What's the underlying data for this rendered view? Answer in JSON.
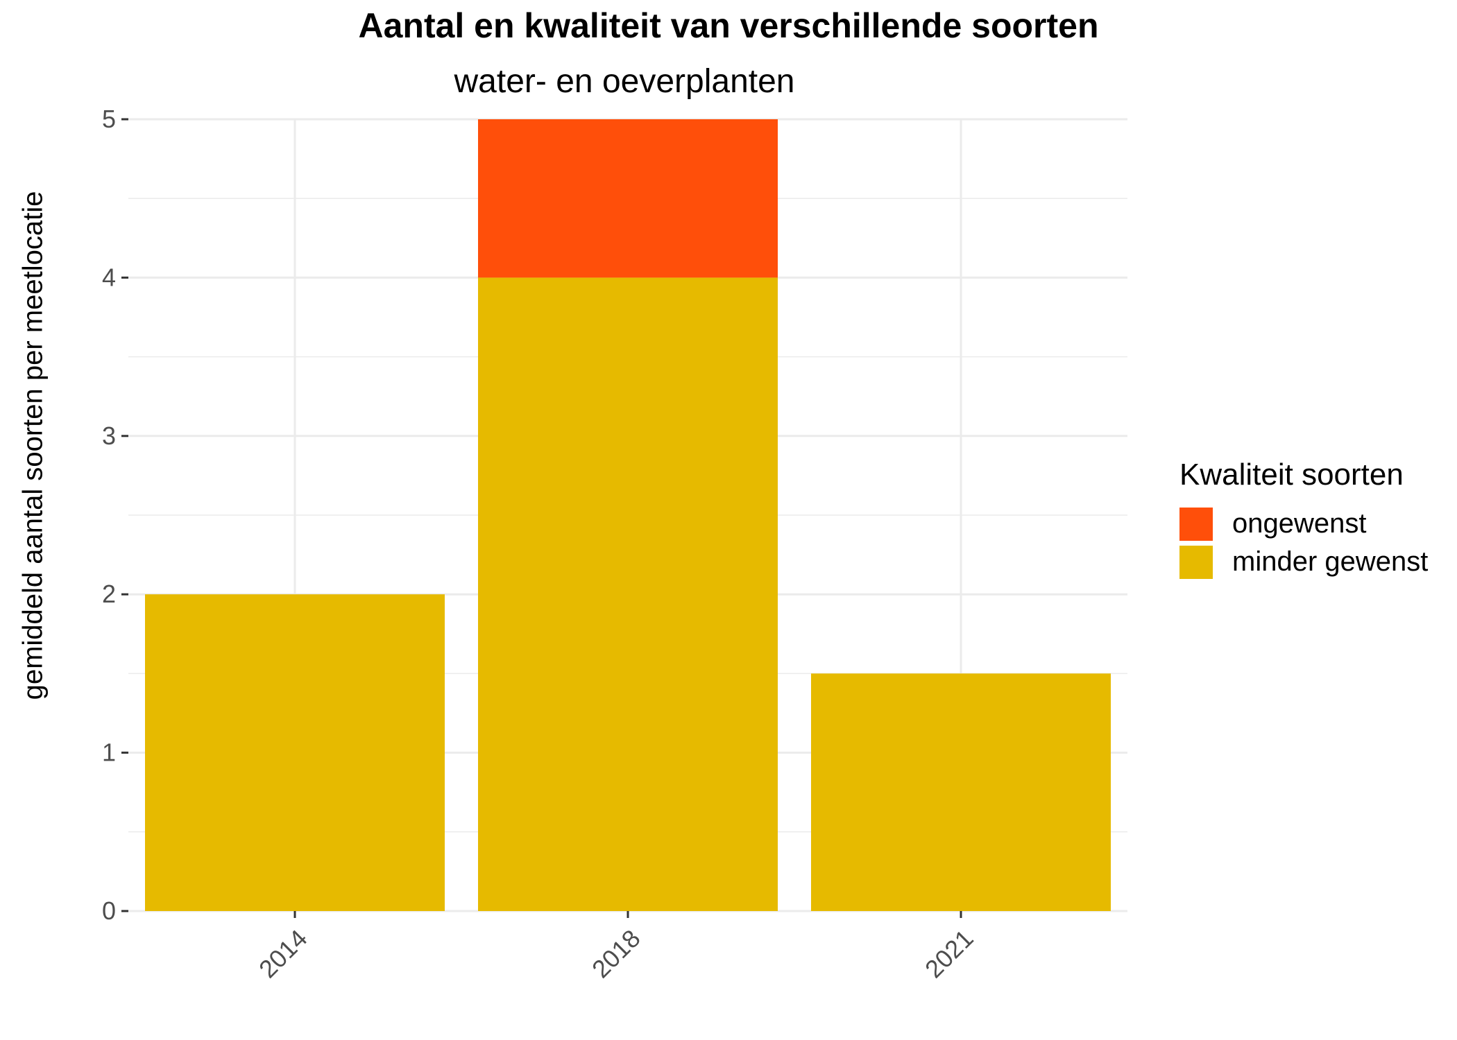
{
  "chart_data": {
    "type": "bar",
    "stacked": true,
    "title": "Aantal en kwaliteit van verschillende soorten",
    "subtitle": "water- en oeverplanten",
    "xlabel": "",
    "ylabel": "gemiddeld aantal soorten per meetlocatie",
    "categories": [
      "2014",
      "2018",
      "2021"
    ],
    "ylim": [
      0,
      5
    ],
    "yticks": [
      "0",
      "1",
      "2",
      "3",
      "4",
      "5"
    ],
    "grid": true,
    "legend": {
      "title": "Kwaliteit soorten",
      "placement": "right",
      "items": [
        {
          "label": "ongewenst",
          "color": "#FF4F0A"
        },
        {
          "label": "minder gewenst",
          "color": "#E6BA00"
        }
      ]
    },
    "series": [
      {
        "name": "minder gewenst",
        "color": "#E6BA00",
        "values": [
          2,
          4,
          1.5
        ]
      },
      {
        "name": "ongewenst",
        "color": "#FF4F0A",
        "values": [
          0,
          1,
          0
        ]
      }
    ]
  }
}
